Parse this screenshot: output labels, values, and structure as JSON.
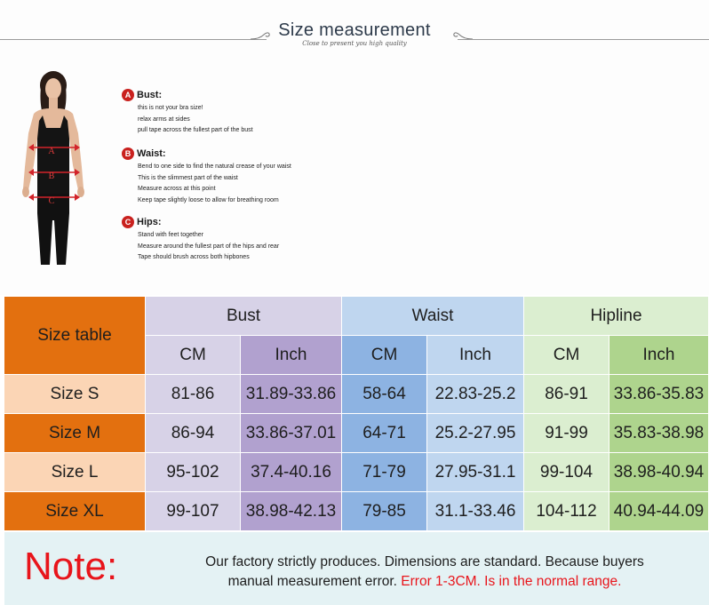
{
  "header": {
    "title": "Size measurement",
    "subtitle": "Close to present you high quality"
  },
  "instructions": [
    {
      "badge": "A",
      "heading": "Bust:",
      "lines": [
        "this is not your bra size!",
        "relax arms at sides",
        "pull tape across the fullest part of the bust"
      ]
    },
    {
      "badge": "B",
      "heading": "Waist:",
      "lines": [
        "Bend  to one side to find the natural crease of your waist",
        "This is the slimmest part of the waist",
        "Measure across at this point",
        "Keep tape slightly loose to allow for breathing room"
      ]
    },
    {
      "badge": "C",
      "heading": "Hips:",
      "lines": [
        "Stand with feet together",
        "Measure around the fullest part of the hips and rear",
        "Tape should brush across both hipbones"
      ]
    }
  ],
  "figure": {
    "markers": [
      "A",
      "B",
      "C"
    ]
  },
  "table": {
    "corner": "Size table",
    "groups": [
      "Bust",
      "Waist",
      "Hipline"
    ],
    "units": [
      "CM",
      "Inch",
      "CM",
      "Inch",
      "CM",
      "Inch"
    ],
    "rows": [
      {
        "size": "Size S",
        "values": [
          "81-86",
          "31.89-33.86",
          "58-64",
          "22.83-25.2",
          "86-91",
          "33.86-35.83"
        ]
      },
      {
        "size": "Size M",
        "values": [
          "86-94",
          "33.86-37.01",
          "64-71",
          "25.2-27.95",
          "91-99",
          "35.83-38.98"
        ]
      },
      {
        "size": "Size L",
        "values": [
          "95-102",
          "37.4-40.16",
          "71-79",
          "27.95-31.1",
          "99-104",
          "38.98-40.94"
        ]
      },
      {
        "size": "Size XL",
        "values": [
          "99-107",
          "38.98-42.13",
          "79-85",
          "31.1-33.46",
          "104-112",
          "40.94-44.09"
        ]
      }
    ]
  },
  "note": {
    "label": "Note:",
    "text_black_1": "Our factory strictly produces. Dimensions are standard. Because buyers",
    "text_black_2": "manual measurement error.",
    "text_red": "Error 1-3CM. Is in the normal range."
  },
  "colors": {
    "size_orange": "#e3700f",
    "size_peach": "#fbd5b5",
    "bust_light": "#d7d2e7",
    "bust_dark": "#b1a1cf",
    "waist_light": "#bfd6ef",
    "waist_dark": "#8db3e2",
    "hip_light": "#dbeed0",
    "hip_dark": "#aed48d",
    "badge_red": "#c9211e",
    "note_red": "#e8151b"
  }
}
